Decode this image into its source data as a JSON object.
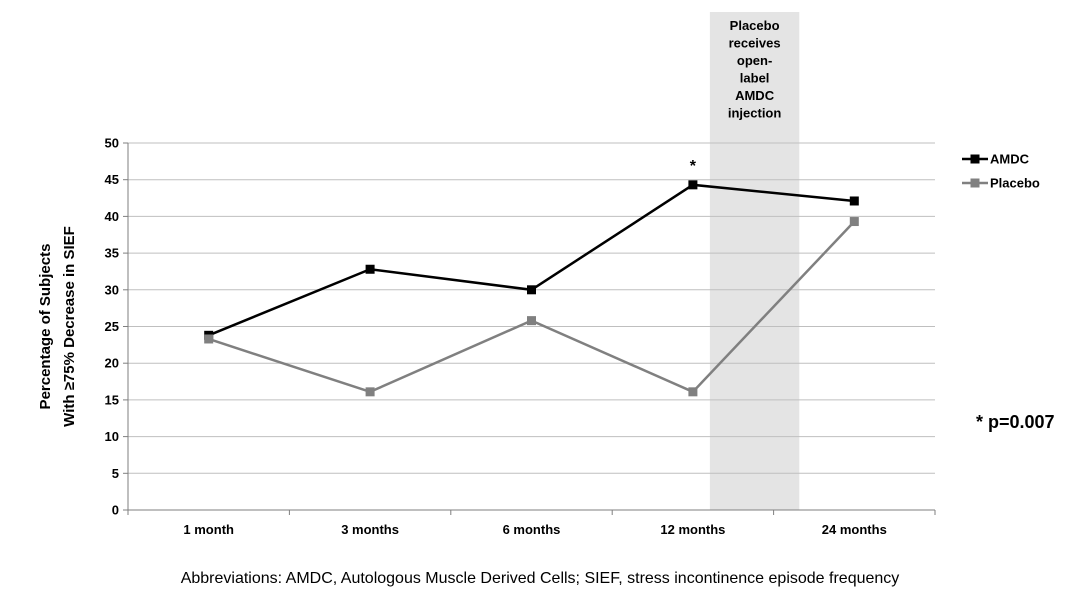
{
  "chart_data": {
    "type": "line",
    "categories": [
      "1 month",
      "3 months",
      "6 months",
      "12 months",
      "24 months"
    ],
    "series": [
      {
        "name": "AMDC",
        "values": [
          23.8,
          32.8,
          30.0,
          44.3,
          42.1
        ],
        "color": "#000000"
      },
      {
        "name": "Placebo",
        "values": [
          23.3,
          16.1,
          25.8,
          16.1,
          39.3
        ],
        "color": "#808080"
      }
    ],
    "ylabel_lines": [
      "Percentage of Subjects",
      "With ≥75% Decrease in SIEF"
    ],
    "ylim": [
      0,
      50
    ],
    "yticks": [
      0,
      5,
      10,
      15,
      20,
      25,
      30,
      35,
      40,
      45,
      50
    ],
    "grid": true,
    "legend_position": "right",
    "shaded_region": {
      "between": [
        "12 months",
        "24 months"
      ],
      "label_lines": [
        "Placebo",
        "receives",
        "open-",
        "label",
        "AMDC",
        "injection"
      ],
      "color": "#e4e4e4"
    },
    "annotations": [
      {
        "text": "*",
        "at": "12 months",
        "series": "AMDC"
      }
    ],
    "significance_note": "* p=0.007"
  },
  "footnote": "Abbreviations: AMDC, Autologous Muscle Derived Cells; SIEF, stress incontinence episode frequency"
}
